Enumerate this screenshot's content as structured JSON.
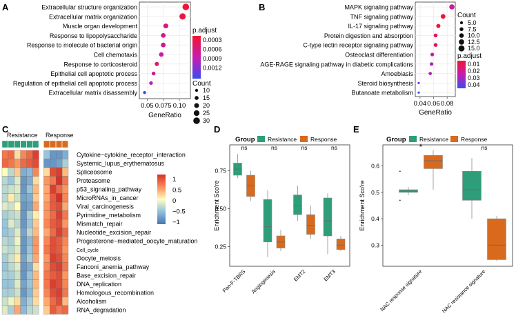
{
  "chart_data": [
    {
      "panel": "A",
      "type": "scatter",
      "xlabel": "GeneRatio",
      "ylabel": "",
      "xlim": [
        0.04,
        0.115
      ],
      "xticks": [
        "0.05",
        "0.075",
        "0.10"
      ],
      "xtick_values": [
        0.05,
        0.075,
        0.1
      ],
      "categories": [
        "Extracellular structure organization",
        "Extracellular matrix organization",
        "Muscle organ development",
        "Response to lipopolysaccharide",
        "Response to molecule of bacterial origin",
        "Cell chemotaxis",
        "Response to corticosteroid",
        "Epithelial cell apoptotic process",
        "Regulation of epithelial cell apoptotic process",
        "Extracellular matrix disassembly"
      ],
      "points": [
        {
          "x": 0.11,
          "p": 5e-05,
          "count": 32
        },
        {
          "x": 0.105,
          "p": 0.0001,
          "count": 30
        },
        {
          "x": 0.079,
          "p": 0.0004,
          "count": 22
        },
        {
          "x": 0.075,
          "p": 0.0005,
          "count": 21
        },
        {
          "x": 0.075,
          "p": 0.0005,
          "count": 21
        },
        {
          "x": 0.072,
          "p": 0.0006,
          "count": 20
        },
        {
          "x": 0.065,
          "p": 0.0003,
          "count": 18
        },
        {
          "x": 0.06,
          "p": 0.0005,
          "count": 16
        },
        {
          "x": 0.056,
          "p": 0.0007,
          "count": 15
        },
        {
          "x": 0.046,
          "p": 0.0013,
          "count": 12
        }
      ],
      "legend_color_title": "p.adjust",
      "legend_color_ticks": [
        "0.0003",
        "0.0006",
        "0.0009",
        "0.0012"
      ],
      "legend_size_title": "Count",
      "legend_size_ticks": [
        "10",
        "15",
        "20",
        "25",
        "30"
      ]
    },
    {
      "panel": "B",
      "type": "scatter",
      "xlabel": "GeneRatio",
      "ylabel": "",
      "xlim": [
        0.035,
        0.09
      ],
      "xticks": [
        "0.04",
        "0.06",
        "0.08"
      ],
      "xtick_values": [
        0.04,
        0.06,
        0.08
      ],
      "categories": [
        "MAPK signaling pathway",
        "TNF signaling pathway",
        "IL-17 signaling pathway",
        "Protein digestion and absorption",
        "C-type lectin receptor signaling pathway",
        "Osteoclast differentiation",
        "AGE-RAGE signaling pathway in diabetic complications",
        "Amoebiasis",
        "Steroid biosynthesis",
        "Butanoate metabolism"
      ],
      "points": [
        {
          "x": 0.087,
          "p": 0.02,
          "count": 15
        },
        {
          "x": 0.074,
          "p": 0.002,
          "count": 13
        },
        {
          "x": 0.067,
          "p": 0.003,
          "count": 11
        },
        {
          "x": 0.063,
          "p": 0.006,
          "count": 10
        },
        {
          "x": 0.063,
          "p": 0.008,
          "count": 10
        },
        {
          "x": 0.058,
          "p": 0.02,
          "count": 9
        },
        {
          "x": 0.057,
          "p": 0.028,
          "count": 9
        },
        {
          "x": 0.055,
          "p": 0.025,
          "count": 8
        },
        {
          "x": 0.038,
          "p": 0.038,
          "count": 4
        },
        {
          "x": 0.038,
          "p": 0.045,
          "count": 4
        }
      ],
      "legend_size_title": "Count",
      "legend_size_ticks": [
        "5.0",
        "7.5",
        "10.0",
        "12.5",
        "15.0"
      ],
      "legend_color_title": "p.adjust",
      "legend_color_ticks": [
        "0.01",
        "0.02",
        "0.03",
        "0.04"
      ]
    },
    {
      "panel": "C",
      "type": "heatmap",
      "groups": [
        {
          "name": "Resistance",
          "n": 6,
          "color": "#2e9e7a"
        },
        {
          "name": "Response",
          "n": 4,
          "color": "#d96a1d"
        }
      ],
      "rows": [
        "Cytokine−cytokine_receptor_interaction",
        "Systemic_lupus_erythematosus",
        "Spliceosome",
        "Proteasome",
        "p53_signaling_pathway",
        "MicroRNAs_in_cancer",
        "Viral_carcinogenesis",
        "Pyrimidine_metabolism",
        "Mismatch_repair",
        "Nucleotide_excision_repair",
        "Progesterone−mediated_oocyte_maturation",
        "Cell_cycle",
        "Oocyte_meiosis",
        "Fanconi_anemia_pathway",
        "Base_excision_repair",
        "DNA_replication",
        "Homologous_recombination",
        "Alcoholism",
        "RNA_degradation"
      ],
      "values": [
        [
          0.8,
          0.9,
          0.2,
          0.7,
          0.9,
          1.2,
          -0.6,
          -1.0,
          -1.0,
          -0.8
        ],
        [
          0.9,
          0.8,
          0.6,
          0.9,
          1.0,
          1.1,
          -1.0,
          -1.0,
          -0.9,
          -0.5
        ],
        [
          0.0,
          -0.4,
          0.3,
          -0.8,
          -0.7,
          0.7,
          0.2,
          1.1,
          1.2,
          0.4
        ],
        [
          -0.4,
          -0.6,
          -0.2,
          -1.0,
          -0.8,
          0.2,
          0.6,
          0.8,
          1.3,
          0.8
        ],
        [
          -0.4,
          -0.3,
          -0.2,
          -1.0,
          -0.6,
          0.4,
          0.5,
          1.2,
          0.9,
          0.6
        ],
        [
          -0.4,
          0.1,
          -0.3,
          -0.9,
          -0.8,
          0.3,
          0.5,
          1.0,
          1.3,
          0.7
        ],
        [
          -0.2,
          -0.3,
          0.0,
          -1.0,
          -0.9,
          0.5,
          0.6,
          1.0,
          1.1,
          0.5
        ],
        [
          -0.5,
          -0.4,
          -0.3,
          -1.0,
          -0.5,
          0.1,
          0.6,
          0.9,
          1.2,
          0.8
        ],
        [
          -0.6,
          -0.2,
          -0.4,
          -1.0,
          -0.6,
          0.3,
          0.7,
          1.0,
          1.1,
          0.6
        ],
        [
          -0.6,
          -0.5,
          -0.2,
          -0.9,
          -0.4,
          0.4,
          0.5,
          0.9,
          1.2,
          0.9
        ],
        [
          -0.4,
          -0.5,
          -0.1,
          -1.0,
          -0.7,
          0.6,
          0.7,
          1.1,
          1.0,
          0.7
        ],
        [
          -0.3,
          -0.4,
          -0.2,
          -1.0,
          -0.6,
          0.6,
          0.8,
          1.1,
          1.0,
          0.6
        ],
        [
          -0.5,
          -0.3,
          0.1,
          -0.9,
          -0.5,
          0.5,
          0.6,
          1.2,
          1.1,
          0.7
        ],
        [
          -0.6,
          -0.4,
          -0.2,
          -1.0,
          -0.8,
          0.2,
          0.7,
          1.1,
          1.2,
          0.8
        ],
        [
          -0.5,
          -0.5,
          -0.3,
          -1.0,
          -0.6,
          0.4,
          0.8,
          1.0,
          1.1,
          0.6
        ],
        [
          -0.6,
          -0.6,
          -0.2,
          -0.9,
          -0.6,
          0.4,
          0.8,
          1.2,
          1.1,
          0.7
        ],
        [
          -0.5,
          -0.5,
          -0.3,
          -1.0,
          -0.7,
          0.3,
          0.7,
          1.1,
          1.2,
          0.8
        ],
        [
          -0.3,
          -0.1,
          0.2,
          -0.8,
          -0.5,
          0.2,
          0.5,
          0.9,
          1.1,
          0.4
        ],
        [
          -0.2,
          -0.5,
          0.5,
          -0.7,
          -0.4,
          -0.3,
          0.3,
          1.0,
          0.8,
          0.9
        ]
      ],
      "scale_ticks": [
        "1",
        "0.5",
        "0",
        "−0.5",
        "−1"
      ],
      "scale_tick_values": [
        1,
        0.5,
        0,
        -0.5,
        -1
      ]
    },
    {
      "panel": "D",
      "type": "box",
      "title": "Group",
      "legend": [
        "Resistance",
        "Response"
      ],
      "colors": [
        "#2e9e7a",
        "#d96a1d"
      ],
      "ylabel": "Enrichment Sco're",
      "ylim": [
        0.12,
        0.92
      ],
      "yticks": [
        "0.25",
        "0.50",
        "0.75"
      ],
      "ytick_values": [
        0.25,
        0.5,
        0.75
      ],
      "categories": [
        "Pan-F-TBRS",
        "Angiogenesis",
        "EMT2",
        "EMT3"
      ],
      "significance": [
        "ns",
        "ns",
        "ns",
        "ns"
      ],
      "boxes": [
        [
          {
            "min": 0.7,
            "q1": 0.72,
            "median": 0.76,
            "q3": 0.8,
            "max": 0.86
          },
          {
            "min": 0.55,
            "q1": 0.58,
            "median": 0.65,
            "q3": 0.72,
            "max": 0.75
          }
        ],
        [
          {
            "min": 0.18,
            "q1": 0.28,
            "median": 0.38,
            "q3": 0.56,
            "max": 0.62
          },
          {
            "min": 0.22,
            "q1": 0.24,
            "median": 0.28,
            "q3": 0.32,
            "max": 0.36
          }
        ],
        [
          {
            "min": 0.42,
            "q1": 0.46,
            "median": 0.52,
            "q3": 0.59,
            "max": 0.65
          },
          {
            "min": 0.3,
            "q1": 0.33,
            "median": 0.39,
            "q3": 0.46,
            "max": 0.52
          }
        ],
        [
          {
            "min": 0.2,
            "q1": 0.32,
            "median": 0.42,
            "q3": 0.57,
            "max": 0.6
          },
          {
            "min": 0.22,
            "q1": 0.23,
            "median": 0.26,
            "q3": 0.3,
            "max": 0.32
          }
        ]
      ]
    },
    {
      "panel": "E",
      "type": "box",
      "title": "Group",
      "legend": [
        "Resistance",
        "Response"
      ],
      "colors": [
        "#2e9e7a",
        "#d96a1d"
      ],
      "ylabel": "Enrichment Sco're",
      "ylim": [
        0.22,
        0.68
      ],
      "yticks": [
        "0.3",
        "0.4",
        "0.5",
        "0.6"
      ],
      "ytick_values": [
        0.3,
        0.4,
        0.5,
        0.6
      ],
      "categories": [
        "NAC response signature",
        "NAC resistance signature"
      ],
      "significance": [
        "*",
        "ns"
      ],
      "boxes": [
        [
          {
            "min": 0.49,
            "q1": 0.5,
            "median": 0.505,
            "q3": 0.51,
            "max": 0.52
          },
          {
            "min": 0.51,
            "q1": 0.59,
            "median": 0.62,
            "q3": 0.64,
            "max": 0.66
          }
        ],
        [
          {
            "min": 0.4,
            "q1": 0.47,
            "median": 0.51,
            "q3": 0.58,
            "max": 0.63
          },
          {
            "min": 0.24,
            "q1": 0.245,
            "median": 0.3,
            "q3": 0.4,
            "max": 0.41
          }
        ]
      ],
      "outliers": [
        [
          [
            0.58,
            0.47
          ],
          []
        ],
        [
          [],
          []
        ]
      ]
    }
  ]
}
